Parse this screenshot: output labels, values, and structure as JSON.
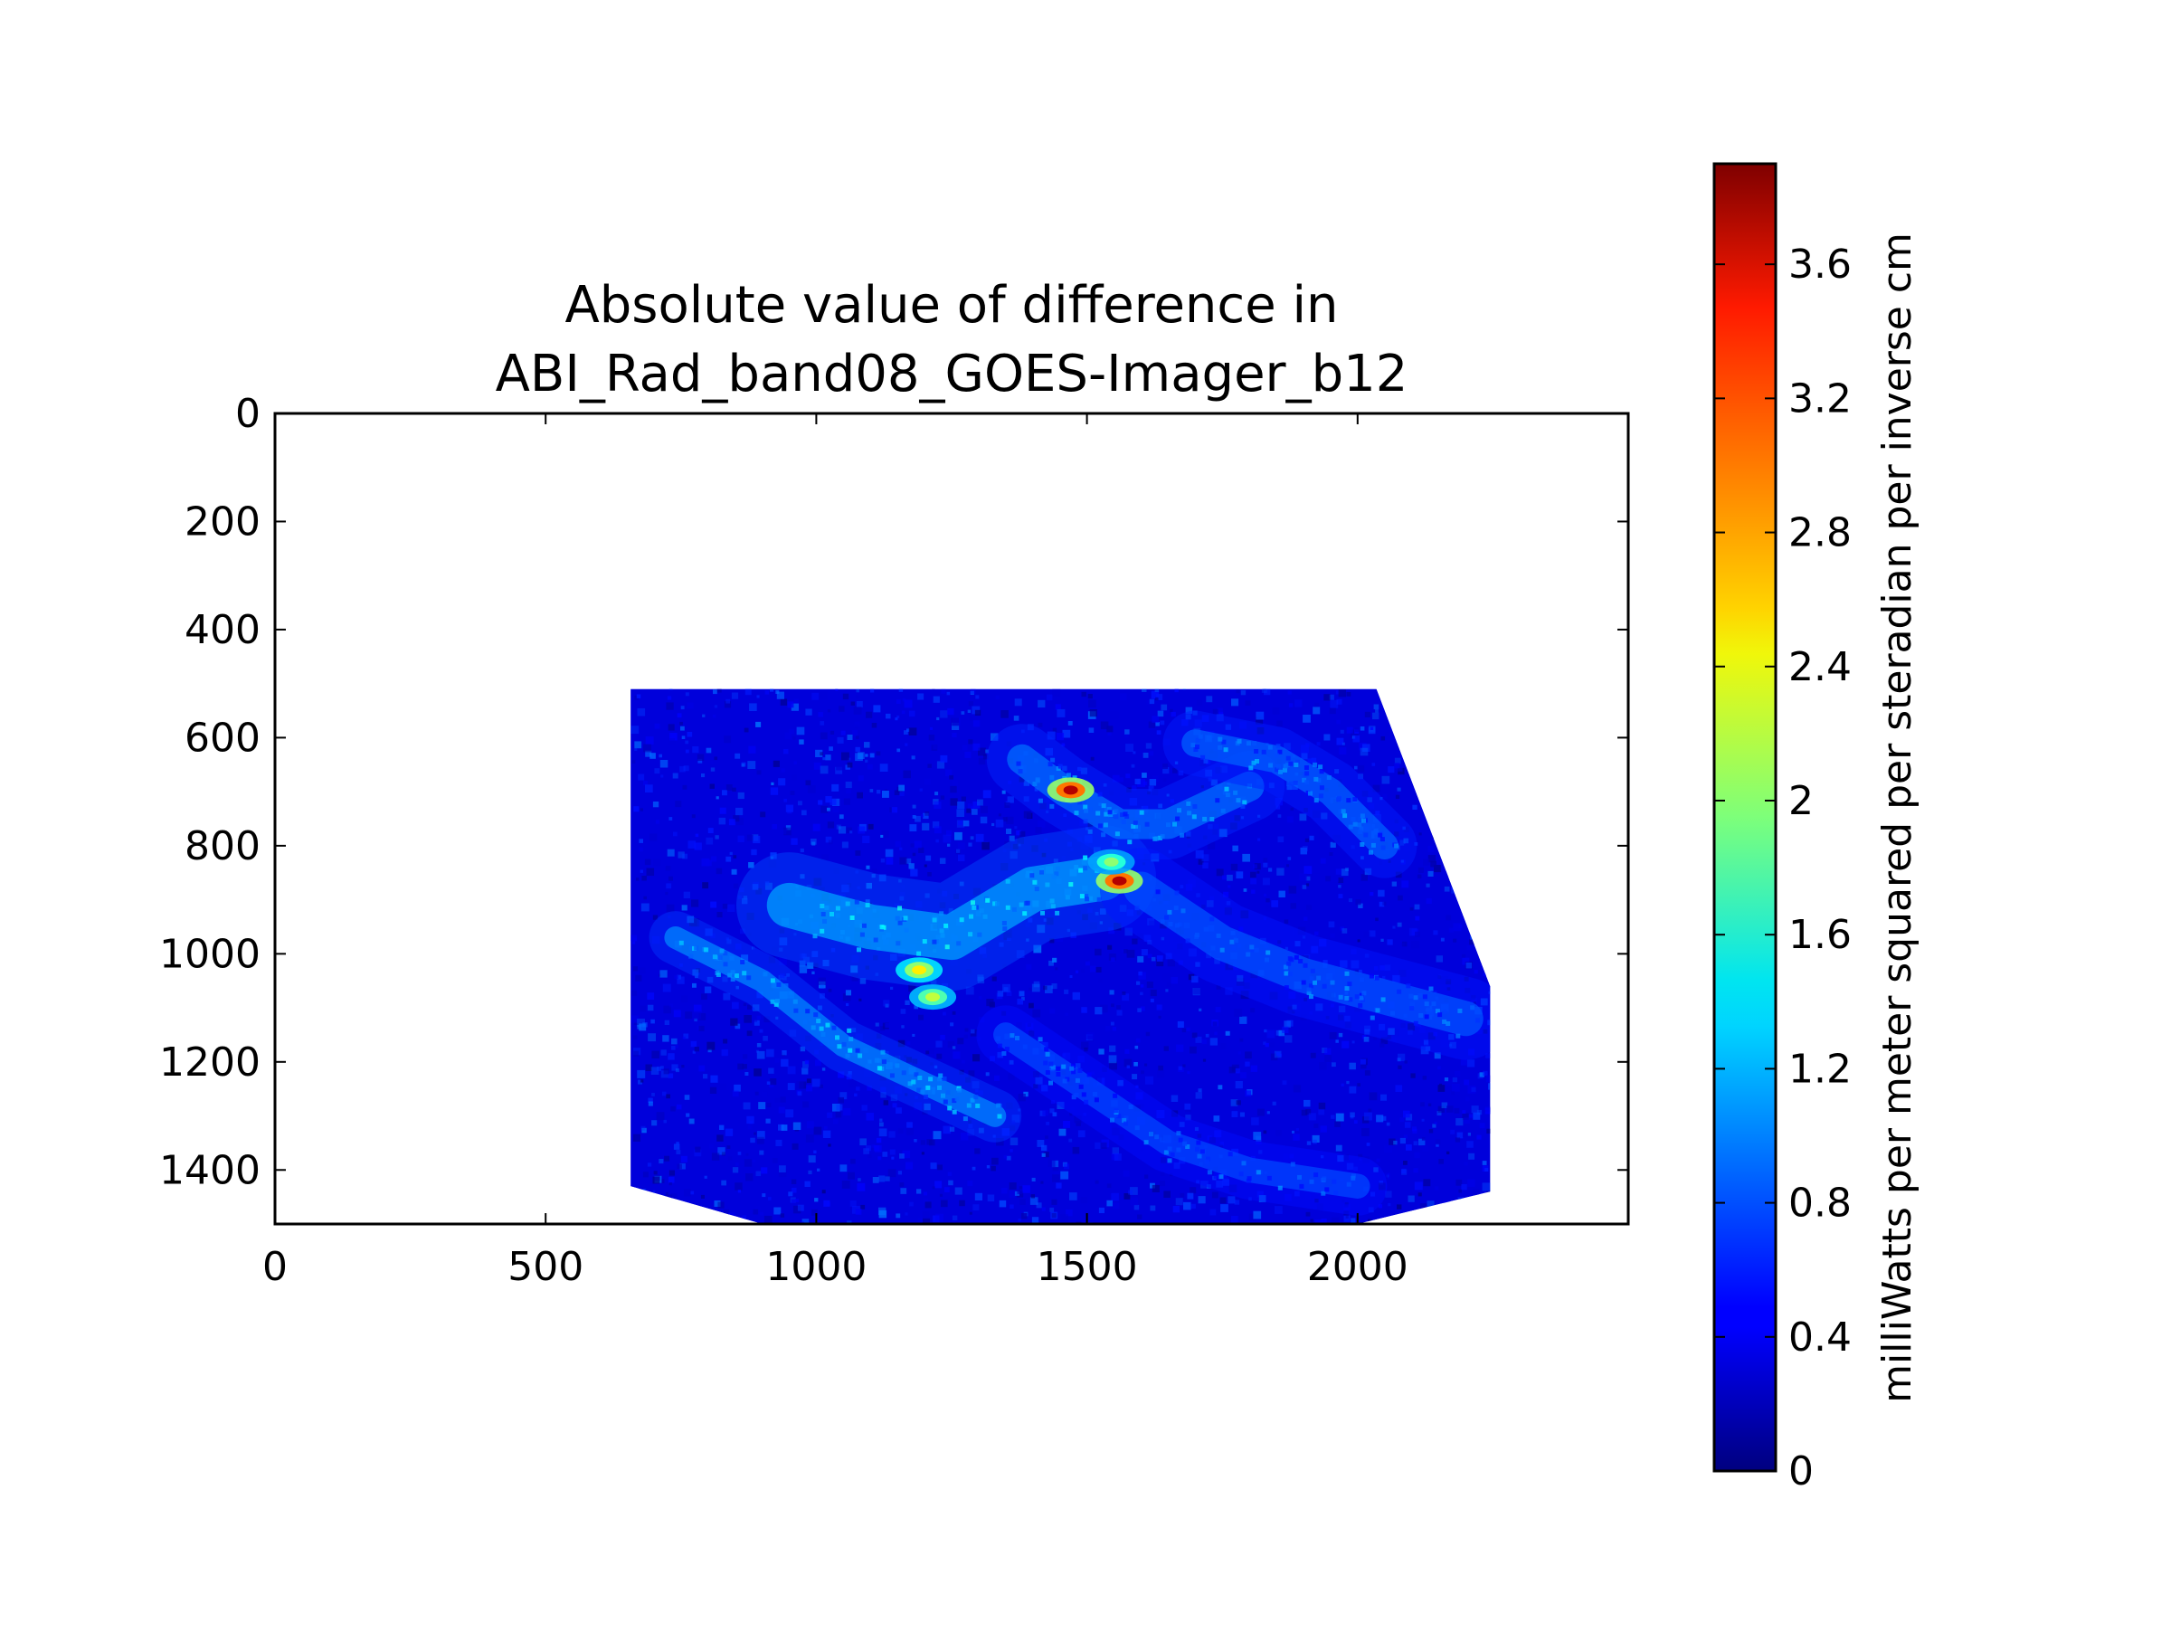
{
  "chart_data": {
    "type": "heatmap",
    "title_lines": [
      "Absolute value of difference in",
      "ABI_Rad_band08_GOES-Imager_b12"
    ],
    "xlabel": "",
    "ylabel": "",
    "xlim": [
      0,
      2500
    ],
    "ylim": [
      1500,
      0
    ],
    "y_axis_inverted": true,
    "xticks": [
      0,
      500,
      1000,
      1500,
      2000
    ],
    "yticks": [
      0,
      200,
      400,
      600,
      800,
      1000,
      1200,
      1400
    ],
    "grid": false,
    "colormap": "jet",
    "colorbar": {
      "label": "milliWatts per meter squared per steradian per inverse cm",
      "range": [
        0,
        3.9
      ],
      "ticks": [
        0,
        0.4,
        0.8,
        1.2,
        1.6,
        2,
        2.4,
        2.8,
        3.2,
        3.6
      ],
      "tick_labels": [
        "0",
        "0.4",
        "0.8",
        "1.2",
        "1.6",
        "2",
        "2.4",
        "2.8",
        "3.2",
        "3.6"
      ],
      "placement": "right"
    },
    "data_region_outline": [
      [
        657,
        510
      ],
      [
        2035,
        510
      ],
      [
        2245,
        1060
      ],
      [
        2245,
        1440
      ],
      [
        2000,
        1500
      ],
      [
        900,
        1500
      ],
      [
        657,
        1430
      ]
    ],
    "background_level": 0.35,
    "features": [
      {
        "name": "diagonal band (western)",
        "level": 1.0,
        "path": [
          [
            740,
            970
          ],
          [
            900,
            1050
          ],
          [
            1050,
            1170
          ],
          [
            1200,
            1240
          ],
          [
            1330,
            1300
          ]
        ],
        "width": 45
      },
      {
        "name": "central plume",
        "level": 1.1,
        "path": [
          [
            950,
            910
          ],
          [
            1100,
            950
          ],
          [
            1250,
            970
          ],
          [
            1400,
            880
          ],
          [
            1530,
            860
          ]
        ],
        "width": 90
      },
      {
        "name": "northern cloud line",
        "level": 0.9,
        "path": [
          [
            1380,
            640
          ],
          [
            1460,
            700
          ],
          [
            1560,
            760
          ],
          [
            1650,
            760
          ],
          [
            1800,
            690
          ]
        ],
        "width": 60
      },
      {
        "name": "eastern swirl",
        "level": 0.8,
        "path": [
          [
            1600,
            880
          ],
          [
            1750,
            980
          ],
          [
            1900,
            1040
          ],
          [
            2050,
            1080
          ],
          [
            2200,
            1120
          ]
        ],
        "width": 70
      },
      {
        "name": "southern arc",
        "level": 0.75,
        "path": [
          [
            1350,
            1150
          ],
          [
            1500,
            1250
          ],
          [
            1650,
            1350
          ],
          [
            1800,
            1400
          ],
          [
            2000,
            1430
          ]
        ],
        "width": 50
      },
      {
        "name": "north-east band",
        "level": 0.85,
        "path": [
          [
            1700,
            610
          ],
          [
            1850,
            640
          ],
          [
            1950,
            700
          ],
          [
            2050,
            800
          ]
        ],
        "width": 55
      }
    ],
    "hotspots": [
      {
        "x": 1470,
        "y": 697,
        "value": 3.7
      },
      {
        "x": 1560,
        "y": 865,
        "value": 3.7
      },
      {
        "x": 1190,
        "y": 1030,
        "value": 2.5
      },
      {
        "x": 1215,
        "y": 1080,
        "value": 2.2
      },
      {
        "x": 1545,
        "y": 830,
        "value": 2.0
      }
    ]
  }
}
